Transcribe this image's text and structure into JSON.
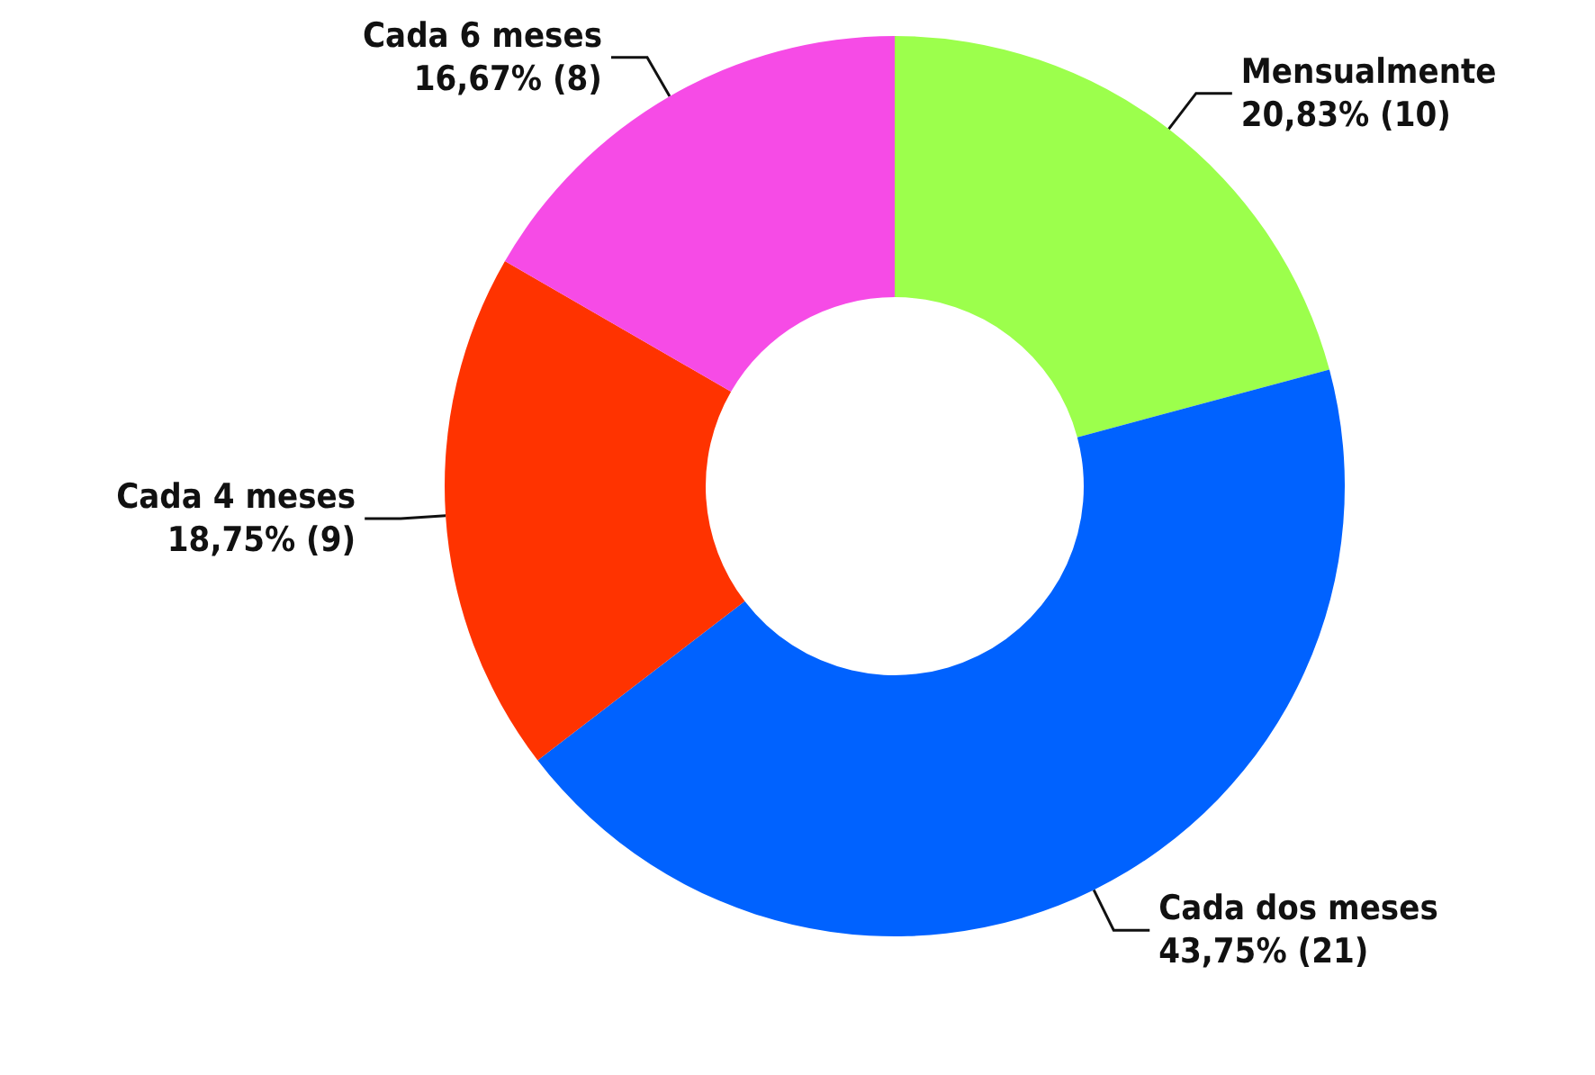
{
  "chart_data": {
    "type": "donut",
    "categories": [
      "Mensualmente",
      "Cada dos meses",
      "Cada 4 meses",
      "Cada 6 meses"
    ],
    "values": [
      10,
      21,
      9,
      8
    ],
    "value_labels": [
      "20,83% (10)",
      "43,75% (21)",
      "18,75% (9)",
      "16,67% (8)"
    ],
    "colors": [
      "#9cff4c",
      "#0062ff",
      "#ff3300",
      "#f64be6"
    ],
    "legend": false
  }
}
